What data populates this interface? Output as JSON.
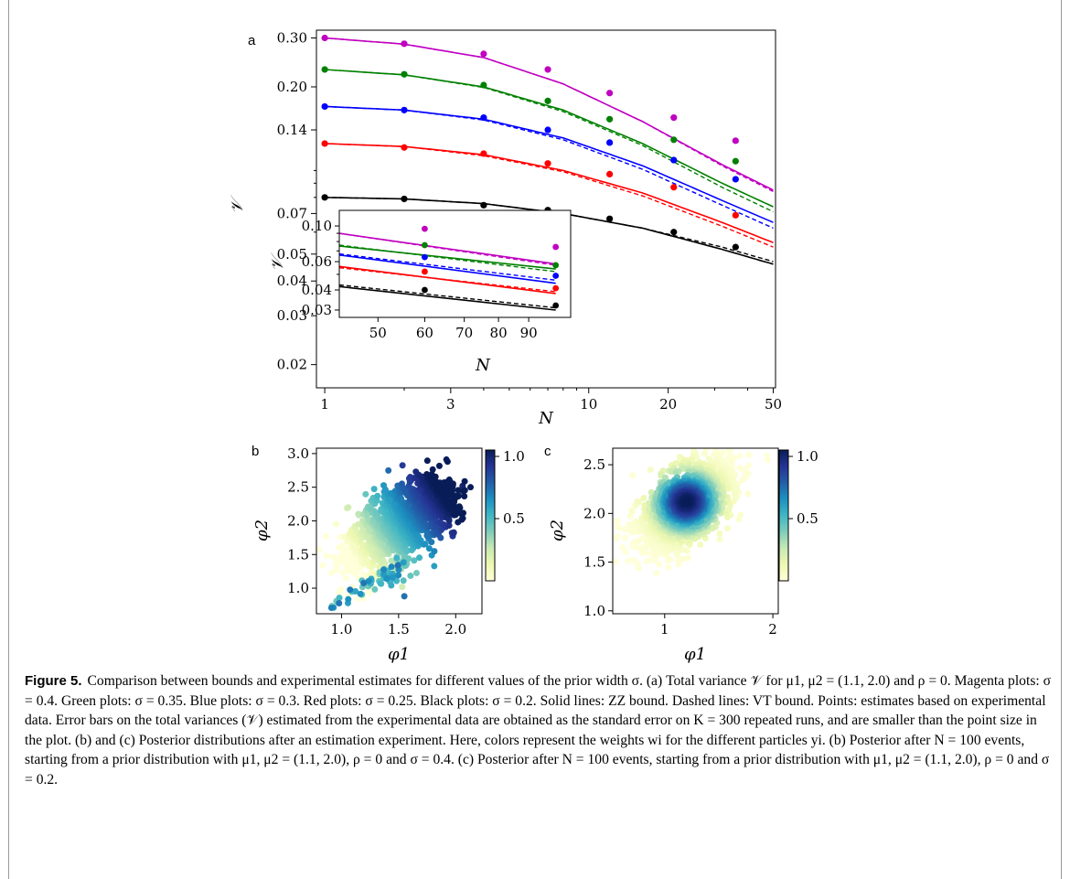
{
  "caption": {
    "label": "Figure 5.",
    "text": "Comparison between bounds and experimental estimates for different values of the prior width σ. (a) Total variance 𝒱 for μ1, μ2 = (1.1, 2.0) and ρ = 0. Magenta plots: σ = 0.4. Green plots: σ = 0.35. Blue plots: σ = 0.3. Red plots: σ = 0.25. Black plots: σ = 0.2. Solid lines: ZZ bound. Dashed lines: VT bound. Points: estimates based on experimental data. Error bars on the total variances (𝒱) estimated from the experimental data are obtained as the standard error on K = 300 repeated runs, and are smaller than the point size in the plot. (b) and (c) Posterior distributions after an estimation experiment. Here, colors represent the weights wi for the different particles yi. (b) Posterior after N = 100 events, starting from a prior distribution with μ1, μ2 = (1.1, 2.0), ρ = 0 and σ = 0.4. (c) Posterior after N = 100 events, starting from a prior distribution with μ1, μ2 = (1.1, 2.0), ρ = 0 and σ = 0.2."
  },
  "colors": {
    "magenta": "#c000c0",
    "green": "#008000",
    "blue": "#0000ff",
    "red": "#ff0000",
    "black": "#000000"
  },
  "chart_data": [
    {
      "panel": "a",
      "type": "line",
      "xlabel": "N",
      "ylabel": "𝒱",
      "xscale": "log",
      "yscale": "log",
      "xlim": [
        0.93,
        51
      ],
      "ylim": [
        0.0165,
        0.32
      ],
      "xticks": [
        1,
        3,
        10,
        20,
        50
      ],
      "yticks": [
        0.02,
        0.03,
        0.04,
        0.05,
        0.07,
        0.14,
        0.2,
        0.3
      ],
      "ytick_labels": [
        "0.02",
        "0.03",
        "0.04",
        "0.05",
        "0.07",
        "0.14",
        "0.20",
        "0.30"
      ],
      "series": [
        {
          "color": "magenta",
          "zz": [
            [
              1,
              0.3
            ],
            [
              2,
              0.285
            ],
            [
              4,
              0.255
            ],
            [
              8,
              0.205
            ],
            [
              16,
              0.15
            ],
            [
              32,
              0.105
            ],
            [
              50,
              0.085
            ]
          ],
          "vt": [
            [
              1,
              0.3
            ],
            [
              2,
              0.285
            ],
            [
              4,
              0.255
            ],
            [
              8,
              0.205
            ],
            [
              16,
              0.15
            ],
            [
              32,
              0.104
            ],
            [
              50,
              0.084
            ]
          ],
          "points": [
            [
              1,
              0.3
            ],
            [
              2,
              0.286
            ],
            [
              4,
              0.263
            ],
            [
              7,
              0.231
            ],
            [
              12,
              0.19
            ],
            [
              21,
              0.155
            ],
            [
              36,
              0.128
            ]
          ]
        },
        {
          "color": "green",
          "zz": [
            [
              1,
              0.231
            ],
            [
              2,
              0.221
            ],
            [
              4,
              0.2
            ],
            [
              8,
              0.165
            ],
            [
              16,
              0.125
            ],
            [
              32,
              0.09
            ],
            [
              50,
              0.074
            ]
          ],
          "vt": [
            [
              1,
              0.231
            ],
            [
              2,
              0.221
            ],
            [
              4,
              0.199
            ],
            [
              8,
              0.163
            ],
            [
              16,
              0.123
            ],
            [
              32,
              0.087
            ],
            [
              50,
              0.071
            ]
          ],
          "points": [
            [
              1,
              0.231
            ],
            [
              2,
              0.222
            ],
            [
              4,
              0.203
            ],
            [
              7,
              0.178
            ],
            [
              12,
              0.153
            ],
            [
              21,
              0.129
            ],
            [
              36,
              0.108
            ]
          ]
        },
        {
          "color": "blue",
          "zz": [
            [
              1,
              0.17
            ],
            [
              2,
              0.165
            ],
            [
              4,
              0.153
            ],
            [
              8,
              0.131
            ],
            [
              16,
              0.104
            ],
            [
              32,
              0.078
            ],
            [
              50,
              0.065
            ]
          ],
          "vt": [
            [
              1,
              0.17
            ],
            [
              2,
              0.165
            ],
            [
              4,
              0.152
            ],
            [
              8,
              0.129
            ],
            [
              16,
              0.101
            ],
            [
              32,
              0.075
            ],
            [
              50,
              0.062
            ]
          ],
          "points": [
            [
              1,
              0.17
            ],
            [
              2,
              0.165
            ],
            [
              4,
              0.155
            ],
            [
              7,
              0.14
            ],
            [
              12,
              0.126
            ],
            [
              21,
              0.109
            ],
            [
              36,
              0.093
            ]
          ]
        },
        {
          "color": "red",
          "zz": [
            [
              1,
              0.125
            ],
            [
              2,
              0.122
            ],
            [
              4,
              0.114
            ],
            [
              8,
              0.1
            ],
            [
              16,
              0.083
            ],
            [
              32,
              0.065
            ],
            [
              50,
              0.055
            ]
          ],
          "vt": [
            [
              1,
              0.125
            ],
            [
              2,
              0.122
            ],
            [
              4,
              0.113
            ],
            [
              8,
              0.099
            ],
            [
              16,
              0.081
            ],
            [
              32,
              0.063
            ],
            [
              50,
              0.053
            ]
          ],
          "points": [
            [
              1,
              0.125
            ],
            [
              2,
              0.121
            ],
            [
              4,
              0.115
            ],
            [
              7,
              0.106
            ],
            [
              12,
              0.097
            ],
            [
              21,
              0.087
            ],
            [
              36,
              0.069
            ]
          ]
        },
        {
          "color": "black",
          "zz": [
            [
              1,
              0.08
            ],
            [
              2,
              0.079
            ],
            [
              4,
              0.076
            ],
            [
              8,
              0.07
            ],
            [
              16,
              0.062
            ],
            [
              32,
              0.052
            ],
            [
              50,
              0.046
            ]
          ],
          "vt": [
            [
              1,
              0.08
            ],
            [
              2,
              0.079
            ],
            [
              4,
              0.076
            ],
            [
              8,
              0.07
            ],
            [
              16,
              0.062
            ],
            [
              32,
              0.053
            ],
            [
              50,
              0.047
            ]
          ],
          "points": [
            [
              1,
              0.08
            ],
            [
              2,
              0.079
            ],
            [
              4,
              0.075
            ],
            [
              7,
              0.072
            ],
            [
              12,
              0.067
            ],
            [
              21,
              0.06
            ],
            [
              36,
              0.053
            ]
          ]
        }
      ],
      "inset": {
        "xlabel": "N",
        "ylabel": "𝒱",
        "xscale": "log",
        "yscale": "log",
        "xlim": [
          43,
          106
        ],
        "ylim": [
          0.027,
          0.125
        ],
        "xticks": [
          50,
          60,
          70,
          80,
          90
        ],
        "yticks": [
          0.03,
          0.04,
          0.06,
          0.1
        ],
        "ytick_labels": [
          "0.03",
          "0.04",
          "0.06",
          "0.10"
        ],
        "series": [
          {
            "color": "magenta",
            "zz": [
              [
                43,
                0.09
              ],
              [
                100,
                0.058
              ]
            ],
            "vt": [
              [
                43,
                0.09
              ],
              [
                100,
                0.057
              ]
            ],
            "points": [
              [
                60,
                0.096
              ],
              [
                100,
                0.074
              ]
            ]
          },
          {
            "color": "green",
            "zz": [
              [
                43,
                0.075
              ],
              [
                100,
                0.054
              ]
            ],
            "vt": [
              [
                43,
                0.076
              ],
              [
                100,
                0.052
              ]
            ],
            "points": [
              [
                60,
                0.076
              ],
              [
                100,
                0.057
              ]
            ]
          },
          {
            "color": "blue",
            "zz": [
              [
                43,
                0.066
              ],
              [
                100,
                0.044
              ]
            ],
            "vt": [
              [
                43,
                0.067
              ],
              [
                100,
                0.046
              ]
            ],
            "points": [
              [
                60,
                0.064
              ],
              [
                100,
                0.049
              ]
            ]
          },
          {
            "color": "red",
            "zz": [
              [
                43,
                0.056
              ],
              [
                100,
                0.038
              ]
            ],
            "vt": [
              [
                43,
                0.055
              ],
              [
                100,
                0.039
              ]
            ],
            "points": [
              [
                60,
                0.052
              ],
              [
                100,
                0.041
              ]
            ]
          },
          {
            "color": "black",
            "zz": [
              [
                43,
                0.042
              ],
              [
                100,
                0.03
              ]
            ],
            "vt": [
              [
                43,
                0.043
              ],
              [
                100,
                0.031
              ]
            ],
            "points": [
              [
                60,
                0.04
              ],
              [
                100,
                0.032
              ]
            ]
          }
        ]
      }
    },
    {
      "panel": "b",
      "type": "scatter",
      "xlabel": "φ1",
      "ylabel": "φ2",
      "xlim": [
        0.78,
        2.23
      ],
      "ylim": [
        0.62,
        3.08
      ],
      "xticks": [
        1.0,
        1.5,
        2.0
      ],
      "xtick_labels": [
        "1.0",
        "1.5",
        "2.0"
      ],
      "yticks": [
        1.0,
        1.5,
        2.0,
        2.5,
        3.0
      ],
      "ytick_labels": [
        "1.0",
        "1.5",
        "2.0",
        "2.5",
        "3.0"
      ],
      "colorbar": {
        "ticks": [
          0.5,
          1.0
        ],
        "tick_labels": [
          "0.5",
          "1.0"
        ],
        "colormap": "YlGnBu"
      },
      "note": "particle cloud stretched from lower-left (φ1≈0.9, φ2≈0.8, low weight) to upper-right (φ1≈1.9, φ2≈2.5, weight≈1)"
    },
    {
      "panel": "c",
      "type": "scatter",
      "xlabel": "φ1",
      "ylabel": "φ2",
      "xlim": [
        0.52,
        2.05
      ],
      "ylim": [
        0.97,
        2.67
      ],
      "xticks": [
        1,
        2
      ],
      "xtick_labels": [
        "1",
        "2"
      ],
      "yticks": [
        1.0,
        1.5,
        2.0,
        2.5
      ],
      "ytick_labels": [
        "1.0",
        "1.5",
        "2.0",
        "2.5"
      ],
      "colorbar": {
        "ticks": [
          0.5,
          1.0
        ],
        "tick_labels": [
          "0.5",
          "1.0"
        ],
        "colormap": "YlGnBu"
      },
      "note": "roughly elliptical cloud centred near φ1≈1.2, φ2≈2.15 with peak weight at centre"
    }
  ]
}
